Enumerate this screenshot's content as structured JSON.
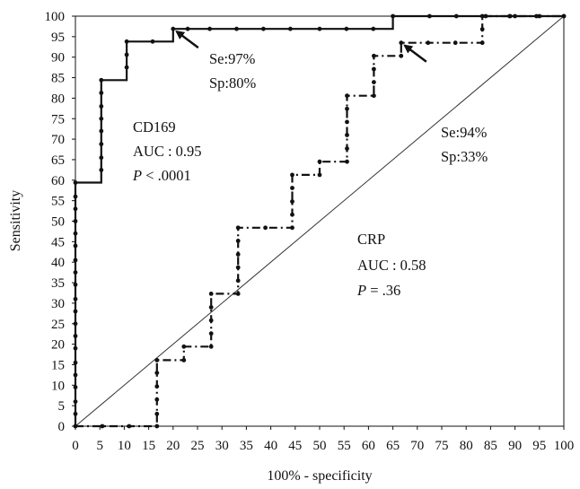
{
  "chart_data": {
    "type": "line",
    "xlabel": "100% - specificity",
    "ylabel": "Sensitivity",
    "xlim": [
      0,
      100
    ],
    "ylim": [
      0,
      100
    ],
    "x_ticks": [
      0,
      5,
      10,
      15,
      20,
      25,
      30,
      35,
      40,
      45,
      50,
      55,
      60,
      65,
      70,
      75,
      80,
      85,
      90,
      95,
      100
    ],
    "y_ticks": [
      0,
      5,
      10,
      15,
      20,
      25,
      30,
      35,
      40,
      45,
      50,
      55,
      60,
      65,
      70,
      75,
      80,
      85,
      90,
      95,
      100
    ],
    "grid": false,
    "reference_line": {
      "from": [
        0,
        0
      ],
      "to": [
        100,
        100
      ]
    },
    "series": [
      {
        "name": "CD169",
        "line_style": "solid",
        "points": [
          [
            0,
            0
          ],
          [
            0,
            59.4
          ],
          [
            5.3,
            59.4
          ],
          [
            5.3,
            84.4
          ],
          [
            10.5,
            84.4
          ],
          [
            10.5,
            93.8
          ],
          [
            20,
            93.8
          ],
          [
            20,
            96.9
          ],
          [
            65,
            96.9
          ],
          [
            65,
            100
          ],
          [
            100,
            100
          ]
        ],
        "markers": [
          [
            0,
            0
          ],
          [
            0,
            3
          ],
          [
            0,
            6
          ],
          [
            0,
            9.5
          ],
          [
            0,
            12.5
          ],
          [
            0,
            15.5
          ],
          [
            0,
            19
          ],
          [
            0,
            22
          ],
          [
            0,
            25
          ],
          [
            0,
            28
          ],
          [
            0,
            31
          ],
          [
            0,
            34.5
          ],
          [
            0,
            37.5
          ],
          [
            0,
            40.5
          ],
          [
            0,
            44
          ],
          [
            0,
            47
          ],
          [
            0,
            50
          ],
          [
            0,
            53
          ],
          [
            0,
            56
          ],
          [
            0,
            59.4
          ],
          [
            5.3,
            62.5
          ],
          [
            5.3,
            65.5
          ],
          [
            5.3,
            68.8
          ],
          [
            5.3,
            72
          ],
          [
            5.3,
            75
          ],
          [
            5.3,
            78
          ],
          [
            5.3,
            81.3
          ],
          [
            5.3,
            84.4
          ],
          [
            10.5,
            87.5
          ],
          [
            10.5,
            90.6
          ],
          [
            10.5,
            93.8
          ],
          [
            15.8,
            93.8
          ],
          [
            20,
            96.9
          ],
          [
            23,
            96.9
          ],
          [
            27.5,
            96.9
          ],
          [
            33,
            96.9
          ],
          [
            38.5,
            96.9
          ],
          [
            44,
            96.9
          ],
          [
            50,
            96.9
          ],
          [
            55.5,
            96.9
          ],
          [
            61,
            96.9
          ],
          [
            65,
            100
          ],
          [
            72.5,
            100
          ],
          [
            78,
            100
          ],
          [
            84,
            100
          ],
          [
            89,
            100
          ],
          [
            90,
            100
          ],
          [
            95,
            100
          ],
          [
            100,
            100
          ]
        ]
      },
      {
        "name": "CRP",
        "line_style": "dash-dot",
        "points": [
          [
            0,
            0
          ],
          [
            16.7,
            0
          ],
          [
            16.7,
            16.1
          ],
          [
            22.2,
            16.1
          ],
          [
            22.2,
            19.4
          ],
          [
            27.8,
            19.4
          ],
          [
            27.8,
            32.3
          ],
          [
            33.3,
            32.3
          ],
          [
            33.3,
            48.4
          ],
          [
            44.4,
            48.4
          ],
          [
            44.4,
            61.3
          ],
          [
            50,
            61.3
          ],
          [
            50,
            64.5
          ],
          [
            55.6,
            64.5
          ],
          [
            55.6,
            80.6
          ],
          [
            61.1,
            80.6
          ],
          [
            61.1,
            90.3
          ],
          [
            66.7,
            90.3
          ],
          [
            66.7,
            93.5
          ],
          [
            83.3,
            93.5
          ],
          [
            83.3,
            100
          ],
          [
            100,
            100
          ]
        ],
        "markers": [
          [
            5.5,
            0
          ],
          [
            11,
            0
          ],
          [
            16.7,
            0
          ],
          [
            16.7,
            3
          ],
          [
            16.7,
            6.5
          ],
          [
            16.7,
            9.7
          ],
          [
            16.7,
            13
          ],
          [
            16.7,
            16.1
          ],
          [
            22.2,
            16.1
          ],
          [
            22.2,
            19.4
          ],
          [
            27.8,
            19.4
          ],
          [
            27.8,
            22.6
          ],
          [
            27.8,
            25.8
          ],
          [
            27.8,
            29
          ],
          [
            27.8,
            32.3
          ],
          [
            33.3,
            32.3
          ],
          [
            33.3,
            35.5
          ],
          [
            33.3,
            38.7
          ],
          [
            33.3,
            41.9
          ],
          [
            33.3,
            45.2
          ],
          [
            33.3,
            48.4
          ],
          [
            38.9,
            48.4
          ],
          [
            44.4,
            48.4
          ],
          [
            44.4,
            51.6
          ],
          [
            44.4,
            54.8
          ],
          [
            44.4,
            58.1
          ],
          [
            44.4,
            61.3
          ],
          [
            50,
            61.3
          ],
          [
            50,
            64.5
          ],
          [
            55.6,
            64.5
          ],
          [
            55.6,
            67.7
          ],
          [
            55.6,
            71
          ],
          [
            55.6,
            74.2
          ],
          [
            55.6,
            77.4
          ],
          [
            55.6,
            80.6
          ],
          [
            61.1,
            80.6
          ],
          [
            61.1,
            83.9
          ],
          [
            61.1,
            87.1
          ],
          [
            61.1,
            90.3
          ],
          [
            66.7,
            90.3
          ],
          [
            66.7,
            93.5
          ],
          [
            72.2,
            93.5
          ],
          [
            77.8,
            93.5
          ],
          [
            83.3,
            93.5
          ],
          [
            83.3,
            96.8
          ],
          [
            83.3,
            100
          ],
          [
            88.9,
            100
          ],
          [
            94.4,
            100
          ],
          [
            100,
            100
          ]
        ]
      }
    ],
    "annotations": [
      {
        "id": "cd169-name",
        "text": "CD169"
      },
      {
        "id": "cd169-auc",
        "text": "AUC : 0.95"
      },
      {
        "id": "cd169-p",
        "italic": "P",
        "text": " < .0001"
      },
      {
        "id": "cd169-se",
        "text": "Se:97%"
      },
      {
        "id": "cd169-sp",
        "text": "Sp:80%"
      },
      {
        "id": "crp-se",
        "text": "Se:94%"
      },
      {
        "id": "crp-sp",
        "text": "Sp:33%"
      },
      {
        "id": "crp-name",
        "text": "CRP"
      },
      {
        "id": "crp-auc",
        "text": "AUC : 0.58"
      },
      {
        "id": "crp-p",
        "italic": "P",
        "text": " = .36"
      }
    ],
    "arrows": [
      {
        "name": "cd169-cutoff-arrow",
        "points_to": [
          20,
          96.9
        ]
      },
      {
        "name": "crp-cutoff-arrow",
        "points_to": [
          66.7,
          93.5
        ]
      }
    ],
    "colors": {
      "line": "#111111",
      "reference": "#333333",
      "axis": "#111111"
    }
  }
}
